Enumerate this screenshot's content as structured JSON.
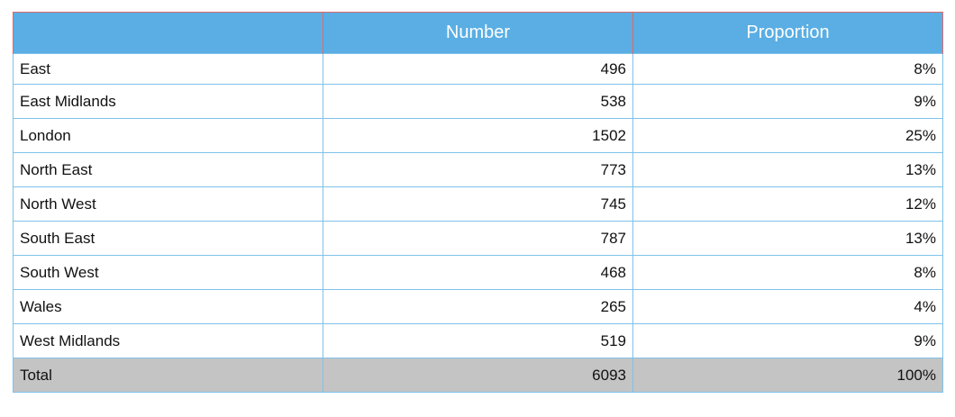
{
  "table": {
    "headers": [
      "",
      "Number",
      "Proportion"
    ],
    "rows": [
      {
        "region": "East",
        "number": "496",
        "proportion": "8%"
      },
      {
        "region": "East Midlands",
        "number": "538",
        "proportion": "9%"
      },
      {
        "region": "London",
        "number": "1502",
        "proportion": "25%"
      },
      {
        "region": "North East",
        "number": "773",
        "proportion": "13%"
      },
      {
        "region": "North West",
        "number": "745",
        "proportion": "12%"
      },
      {
        "region": "South East",
        "number": "787",
        "proportion": "13%"
      },
      {
        "region": "South West",
        "number": "468",
        "proportion": "8%"
      },
      {
        "region": "Wales",
        "number": "265",
        "proportion": "4%"
      },
      {
        "region": "West Midlands",
        "number": "519",
        "proportion": "9%"
      }
    ],
    "total": {
      "label": "Total",
      "number": "6093",
      "proportion": "100%"
    }
  },
  "colors": {
    "header_bg": "#5aaee3",
    "header_text": "#ffffff",
    "header_border": "#e06a6a",
    "cell_border": "#7fc2ea",
    "total_bg": "#c3c4c3"
  }
}
